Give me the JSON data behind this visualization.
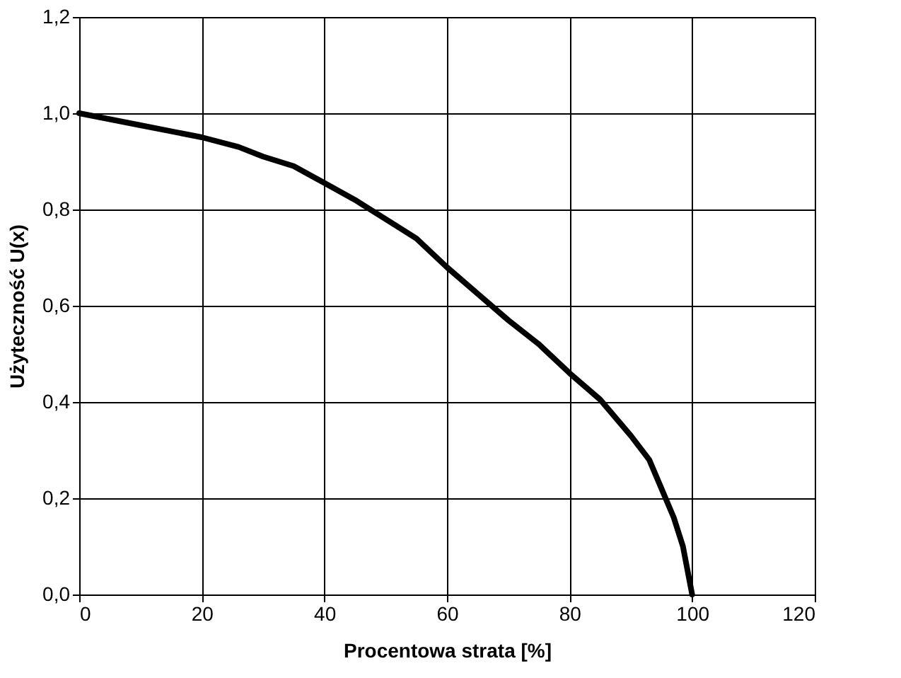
{
  "chart_data": {
    "type": "line",
    "xlabel": "Procentowa strata   [%]",
    "ylabel": "Użyteczność U(x)",
    "xlim": [
      0,
      120
    ],
    "xticks": [
      0,
      20,
      40,
      60,
      80,
      100,
      120
    ],
    "ylim": [
      0,
      1.2
    ],
    "yticks": [
      {
        "value": 0,
        "label": "0,0"
      },
      {
        "value": 0.2,
        "label": "0,2"
      },
      {
        "value": 0.4,
        "label": "0,4"
      },
      {
        "value": 0.6,
        "label": "0,6"
      },
      {
        "value": 0.8,
        "label": "0,8"
      },
      {
        "value": 1.0,
        "label": "1,0"
      },
      {
        "value": 1.2,
        "label": "1,2"
      }
    ],
    "grid": true,
    "marker": "none",
    "line_style": "solid",
    "series": [
      {
        "color": "#000000",
        "x": [
          0,
          10,
          20,
          26,
          30,
          35,
          40,
          45,
          50,
          55,
          60,
          65,
          70,
          75,
          80,
          85,
          90,
          93,
          95,
          97,
          98.5,
          100
        ],
        "values": [
          1.0,
          0.975,
          0.95,
          0.93,
          0.91,
          0.89,
          0.855,
          0.82,
          0.78,
          0.74,
          0.68,
          0.625,
          0.57,
          0.52,
          0.46,
          0.405,
          0.33,
          0.28,
          0.22,
          0.16,
          0.1,
          0.0
        ]
      }
    ]
  }
}
